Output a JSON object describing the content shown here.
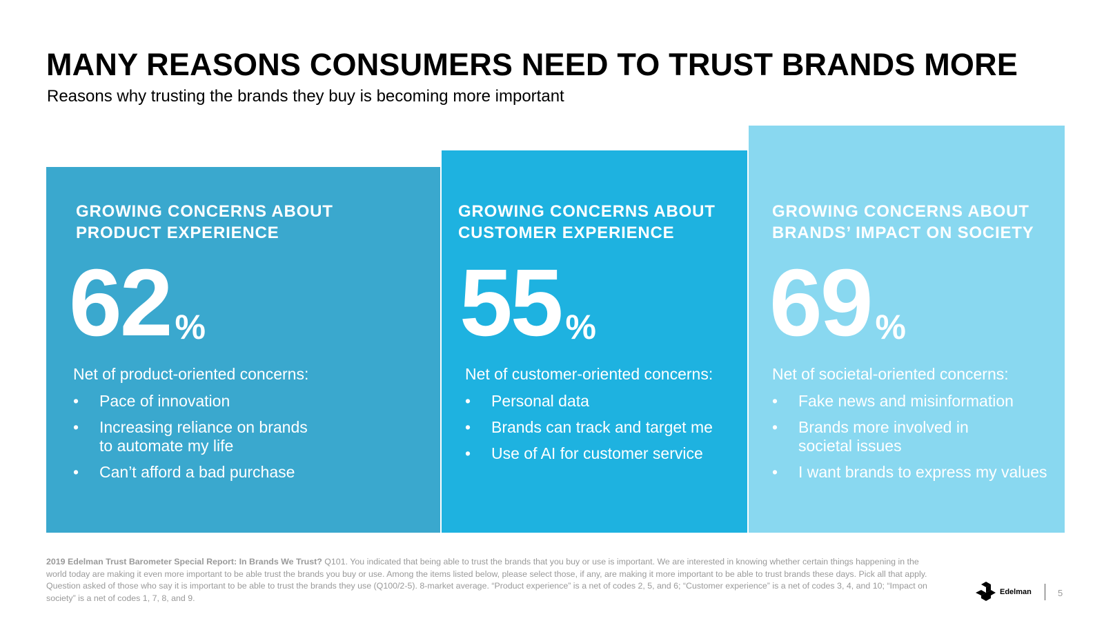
{
  "header": {
    "title": "MANY REASONS CONSUMERS NEED TO TRUST BRANDS MORE",
    "subtitle": "Reasons why trusting the brands they buy is becoming more important"
  },
  "colors": {
    "panel_product": "#3aa8ce",
    "panel_customer": "#1eb2e0",
    "panel_society": "#89d8f0",
    "text_on_panels": "#ffffff",
    "footer_text": "#999999"
  },
  "columns": [
    {
      "heading_line1": "GROWING CONCERNS ABOUT",
      "heading_line2": "PRODUCT EXPERIENCE",
      "value": "62",
      "unit": "%",
      "lead": "Net of product-oriented concerns:",
      "bullets": [
        "Pace of innovation",
        "Increasing reliance on brands to automate my life",
        "Can’t afford a bad purchase"
      ]
    },
    {
      "heading_line1": "GROWING CONCERNS ABOUT",
      "heading_line2": "CUSTOMER EXPERIENCE",
      "value": "55",
      "unit": "%",
      "lead": "Net of customer-oriented concerns:",
      "bullets": [
        "Personal data",
        "Brands can track and target me",
        "Use of AI for customer service"
      ]
    },
    {
      "heading_line1": "GROWING CONCERNS ABOUT",
      "heading_line2": "BRANDS’ IMPACT ON SOCIETY",
      "value": "69",
      "unit": "%",
      "lead": "Net of societal-oriented concerns:",
      "bullets": [
        "Fake news and misinformation",
        "Brands more involved in societal issues",
        "I want brands to express my values"
      ]
    }
  ],
  "bullet_glyph": "•",
  "footer": {
    "source": "2019 Edelman Trust Barometer Special Report: In Brands We Trust?",
    "note": "Q101. You indicated that being able to trust the brands that you buy or use is important. We are interested in knowing whether certain things happening in the world today are making it even more important to be able trust the brands you buy or use. Among the items listed below, please select those, if any, are making it more important to be able to trust brands these days. Pick all that apply. Question asked of those who say it is important to be able to trust the brands they use (Q100/2-5). 8-market average. “Product experience” is a net of codes 2, 5, and 6; “Customer experience” is a net of codes 3, 4, and 10; “Impact on society” is a net of codes 1, 7, 8, and 9."
  },
  "logo": {
    "brand": "Edelman",
    "icon": "edelman-logo-icon"
  },
  "page_number": "5"
}
